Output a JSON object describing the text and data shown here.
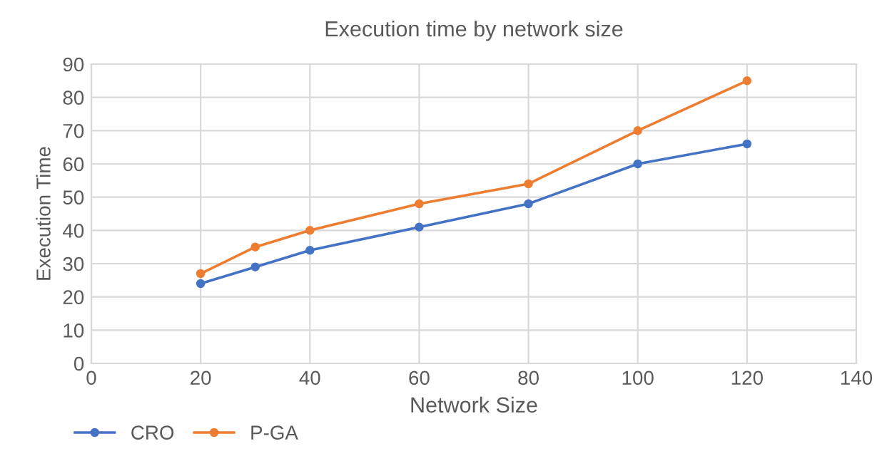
{
  "chart_data": {
    "type": "line",
    "title": "Execution time by network size",
    "xlabel": "Network Size",
    "ylabel": "Execution Time",
    "x": [
      20,
      30,
      40,
      60,
      80,
      100,
      120
    ],
    "series": [
      {
        "name": "CRO",
        "color": "#4472c4",
        "values": [
          24,
          29,
          34,
          41,
          48,
          60,
          66
        ]
      },
      {
        "name": "P-GA",
        "color": "#ed7d31",
        "values": [
          27,
          35,
          40,
          48,
          54,
          70,
          85
        ]
      }
    ],
    "xlim": [
      0,
      140
    ],
    "xticks": [
      0,
      20,
      40,
      60,
      80,
      100,
      120,
      140
    ],
    "ylim": [
      0,
      90
    ],
    "yticks": [
      0,
      10,
      20,
      30,
      40,
      50,
      60,
      70,
      80,
      90
    ],
    "grid": true,
    "legend": "bottom left",
    "marker": "circle",
    "line_style": "solid"
  }
}
